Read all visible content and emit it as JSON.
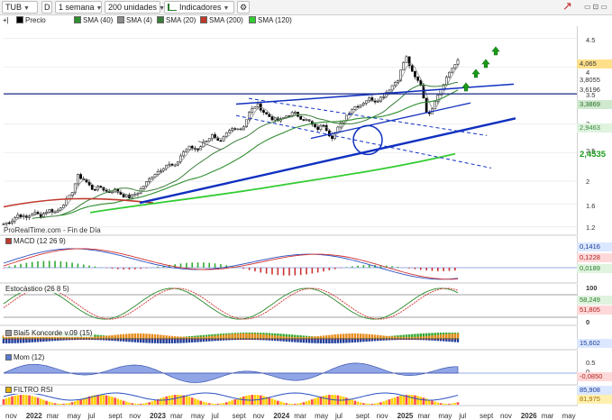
{
  "toolbar": {
    "symbol": "TUB",
    "period_code": "D",
    "timeframe": "1 semana",
    "units": "200 unidades",
    "indicators_label": "Indicadores"
  },
  "legend": {
    "price_label": "Precio",
    "sma": [
      "SMA (40)",
      "SMA (4)",
      "SMA (20)",
      "SMA (200)",
      "SMA (120)"
    ]
  },
  "colors": {
    "sma40": "#2f8f2f",
    "sma4": "#8a8a8a",
    "sma20": "#3a7d3a",
    "sma200": "#c0392b",
    "sma120": "#33cc33",
    "trend_blue": "#1030c0",
    "accent_green": "#1a9d1a"
  },
  "source_label": "ProRealTime.com - Fin de Día",
  "chart_data": [
    {
      "type": "candlestick",
      "title": "TUB",
      "yticks": [
        4.5,
        4,
        3.5,
        3,
        2.5,
        2,
        1.6,
        1.2
      ],
      "ylim": [
        1.1,
        4.7
      ],
      "value_tags": [
        "4,065",
        "3,8055",
        "3,6196",
        "3,3869",
        "2,9463",
        "2,4535"
      ],
      "x_labels": [
        "nov",
        "2022",
        "mar",
        "may",
        "jul",
        "sept",
        "nov",
        "2023",
        "mar",
        "may",
        "jul",
        "sept",
        "nov",
        "2024",
        "mar",
        "may",
        "jul",
        "sept",
        "nov",
        "2025",
        "mar",
        "may",
        "jul",
        "sept",
        "nov",
        "2026",
        "mar",
        "may"
      ],
      "close_path": [
        1.25,
        1.3,
        1.42,
        1.35,
        1.45,
        1.4,
        1.5,
        1.45,
        1.6,
        1.75,
        2.1,
        2.0,
        1.85,
        1.9,
        1.8,
        1.85,
        1.75,
        1.72,
        1.8,
        1.95,
        2.1,
        2.2,
        2.3,
        2.25,
        2.5,
        2.6,
        2.55,
        2.7,
        2.8,
        2.65,
        2.85,
        2.95,
        2.9,
        3.2,
        3.35,
        3.2,
        3.1,
        3.05,
        3.15,
        3.2,
        3.1,
        3.05,
        2.9,
        3.0,
        2.75,
        2.95,
        3.15,
        3.3,
        3.35,
        3.45,
        3.4,
        3.5,
        3.65,
        3.8,
        4.2,
        3.85,
        3.7,
        3.1,
        3.45,
        3.7,
        3.95,
        4.1
      ]
    },
    {
      "type": "line",
      "title": "MACD (12 26 9)",
      "value_tags": [
        "0,1416",
        "0,1228",
        "0,0189"
      ]
    },
    {
      "type": "line",
      "title": "Estocástico (26 8 5)",
      "yticks": [
        100,
        0
      ],
      "value_tags": [
        "58,249",
        "51,805"
      ]
    },
    {
      "type": "area",
      "title": "Blai5 Koncorde v.09 (15)",
      "value_tags": [
        "15,602"
      ]
    },
    {
      "type": "area",
      "title": "Mom (12)",
      "yticks": [
        0.5,
        0
      ],
      "value_tags": [
        "-0,0850"
      ]
    },
    {
      "type": "line",
      "title": "FILTRO RSI",
      "value_tags": [
        "85,908",
        "81,975"
      ]
    }
  ]
}
